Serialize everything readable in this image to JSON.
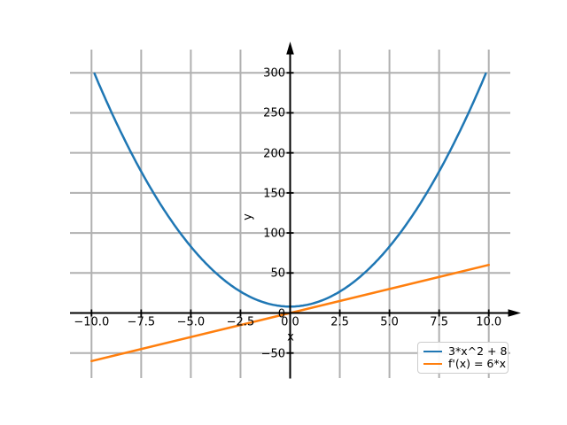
{
  "figure": {
    "background": "#ffffff",
    "axis_color": "#000000"
  },
  "chart_data": {
    "type": "line",
    "title": "",
    "xlabel": "x",
    "ylabel": "y",
    "xlim": [
      -11.07,
      11.07
    ],
    "ylim": [
      -81,
      329
    ],
    "grid": true,
    "grid_color": "#b0b0b0",
    "legend_position": "lower right",
    "xticks": [
      -10,
      -7.5,
      -5,
      -2.5,
      0,
      2.5,
      5,
      7.5,
      10
    ],
    "xtick_labels": [
      "−10.0",
      "−7.5",
      "−5.0",
      "−2.5",
      "0.0",
      "2.5",
      "5.0",
      "7.5",
      "10.0"
    ],
    "yticks": [
      -50,
      0,
      50,
      100,
      150,
      200,
      250,
      300
    ],
    "ytick_labels": [
      "−50",
      "0",
      "50",
      "100",
      "150",
      "200",
      "250",
      "300"
    ],
    "series": [
      {
        "label": "3*x^2 + 8",
        "color": "#1f77b4",
        "fn": "quadratic",
        "coefficients": {
          "a": 3,
          "b": 0,
          "c": 8
        },
        "x_range": [
          -9.85,
          9.85
        ],
        "sample_x": [
          -10,
          -7.5,
          -5,
          -2.5,
          0,
          2.5,
          5,
          7.5,
          10
        ],
        "sample_y": [
          308,
          176.75,
          83,
          26.75,
          8,
          26.75,
          83,
          176.75,
          308
        ]
      },
      {
        "label": "f'(x) = 6*x",
        "color": "#ff7f0e",
        "fn": "linear",
        "coefficients": {
          "m": 6,
          "b": 0
        },
        "x_range": [
          -10,
          10
        ],
        "sample_x": [
          -10,
          -7.5,
          -5,
          -2.5,
          0,
          2.5,
          5,
          7.5,
          10
        ],
        "sample_y": [
          -60,
          -45,
          -30,
          -15,
          0,
          15,
          30,
          45,
          60
        ]
      }
    ]
  }
}
